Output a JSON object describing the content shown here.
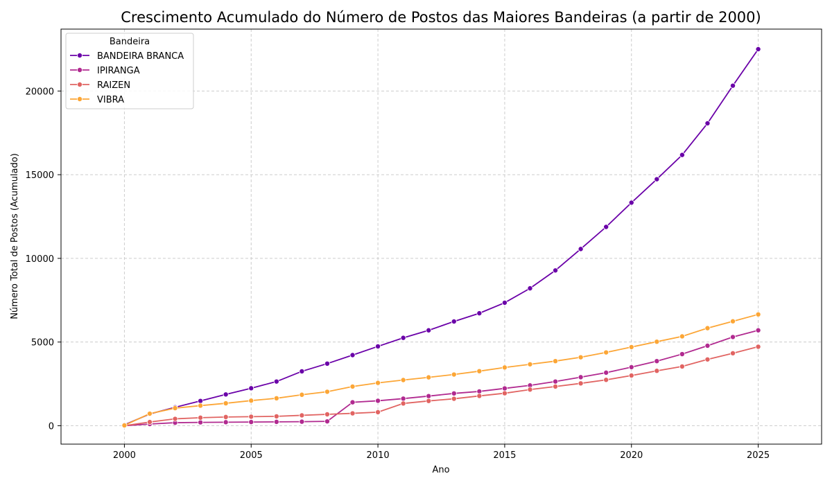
{
  "chart_data": {
    "type": "line",
    "title": "Crescimento Acumulado do Número de Postos das Maiores Bandeiras (a partir de 2000)",
    "xlabel": "Ano",
    "ylabel": "Número Total de Postos (Acumulado)",
    "xlim": [
      1997.5,
      2027.5
    ],
    "ylim": [
      -1100,
      23700
    ],
    "xticks": [
      2000,
      2005,
      2010,
      2015,
      2020,
      2025
    ],
    "yticks": [
      0,
      5000,
      10000,
      15000,
      20000
    ],
    "grid": true,
    "legend_title": "Bandeira",
    "legend_position": "top-left",
    "x": [
      2000,
      2001,
      2002,
      2003,
      2004,
      2005,
      2006,
      2007,
      2008,
      2009,
      2010,
      2011,
      2012,
      2013,
      2014,
      2015,
      2016,
      2017,
      2018,
      2019,
      2020,
      2021,
      2022,
      2023,
      2024,
      2025
    ],
    "series": [
      {
        "name": "BANDEIRA BRANCA",
        "color": "#6a00a8",
        "values": [
          50,
          700,
          1100,
          1480,
          1870,
          2240,
          2640,
          3250,
          3710,
          4220,
          4740,
          5250,
          5700,
          6230,
          6720,
          7350,
          8210,
          9280,
          10560,
          11880,
          13330,
          14730,
          16180,
          18070,
          20320,
          22500
        ]
      },
      {
        "name": "IPIRANGA",
        "color": "#b12a90",
        "values": [
          0,
          100,
          180,
          200,
          210,
          220,
          230,
          240,
          260,
          1400,
          1490,
          1620,
          1770,
          1930,
          2050,
          2230,
          2410,
          2640,
          2900,
          3170,
          3500,
          3860,
          4280,
          4780,
          5300,
          5700
        ]
      },
      {
        "name": "RAIZEN",
        "color": "#e16462",
        "values": [
          0,
          220,
          410,
          480,
          520,
          540,
          560,
          620,
          680,
          740,
          810,
          1330,
          1480,
          1610,
          1780,
          1940,
          2160,
          2340,
          2530,
          2740,
          3000,
          3280,
          3540,
          3960,
          4330,
          4720
        ]
      },
      {
        "name": "VIBRA",
        "color": "#fca636",
        "values": [
          20,
          720,
          1050,
          1200,
          1340,
          1500,
          1640,
          1850,
          2030,
          2340,
          2560,
          2730,
          2890,
          3060,
          3260,
          3480,
          3670,
          3860,
          4090,
          4380,
          4700,
          5020,
          5340,
          5830,
          6240,
          6650
        ]
      }
    ]
  }
}
